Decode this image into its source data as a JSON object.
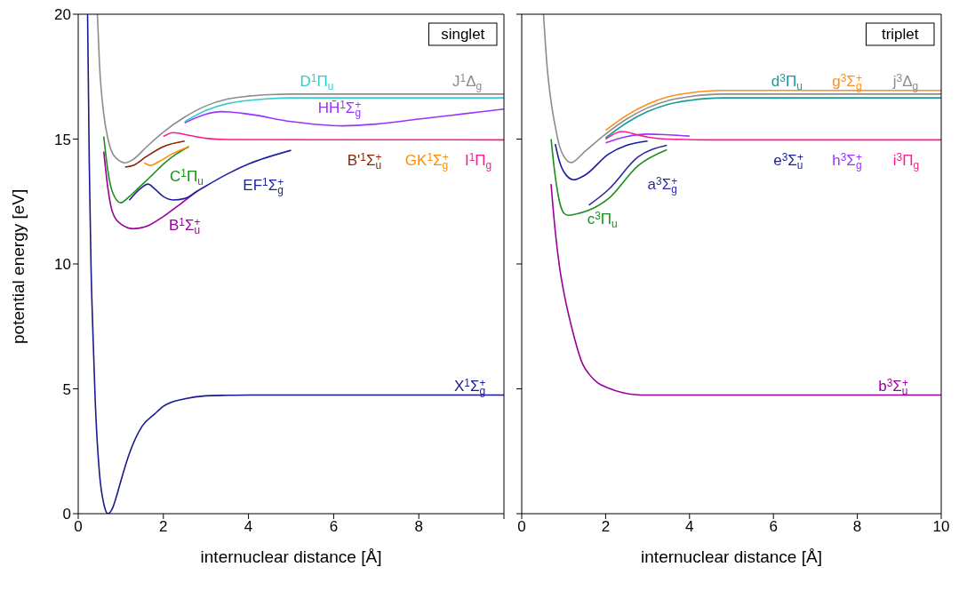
{
  "chart_data": [
    {
      "type": "line",
      "xlabel": "internuclear distance [Å]",
      "ylabel": "potential energy [eV]",
      "xlim": [
        0,
        10
      ],
      "ylim": [
        0,
        20
      ],
      "xticks": [
        0,
        2,
        4,
        6,
        8,
        {
          "value": 10,
          "label": null
        }
      ],
      "yticks": [
        0,
        5,
        10,
        15,
        20
      ],
      "annotations": [
        "singlet"
      ],
      "series": [
        {
          "name": "X$^{1}$Σ$_{g}$$^{+}$",
          "color": "#1a1a8c",
          "x": [
            0.22,
            0.26,
            0.3,
            0.35,
            0.4,
            0.5,
            0.6,
            0.7,
            0.8,
            0.9,
            1.0,
            1.2,
            1.5,
            1.8,
            2.0,
            2.5,
            3.0,
            3.5,
            4.0,
            10
          ],
          "values": [
            20,
            14,
            10,
            7,
            4.5,
            1.6,
            0.4,
            0,
            0.2,
            0.7,
            1.3,
            2.4,
            3.5,
            4.0,
            4.3,
            4.6,
            4.72,
            4.74,
            4.75,
            4.75
          ]
        },
        {
          "name": "B$^{1}$Σ$_{u}$$^{+}$",
          "color": "#990099",
          "x": [
            0.6,
            0.7,
            0.8,
            1.0,
            1.3,
            1.6,
            2.0,
            2.4,
            2.8
          ],
          "values": [
            14.5,
            13,
            12.1,
            11.6,
            11.41,
            11.5,
            11.9,
            12.4,
            12.92
          ]
        },
        {
          "name": "EF$^{1}$Σ$_{g}$$^{+}$",
          "color": "#1f1fa0",
          "x": [
            1.2,
            1.45,
            1.64,
            1.8,
            2.0,
            2.23,
            2.5,
            2.8,
            3.5,
            4.0,
            5.0
          ],
          "values": [
            12.55,
            13.0,
            13.2,
            13.0,
            12.7,
            12.56,
            12.62,
            12.92,
            13.6,
            14.0,
            14.55
          ]
        },
        {
          "name": "C$^{1}$Π$_{u}$",
          "color": "#1a8f1a",
          "x": [
            0.6,
            0.7,
            0.8,
            1.0,
            1.2,
            1.45,
            1.64,
            1.88,
            2.0,
            2.3,
            2.6
          ],
          "values": [
            15.1,
            13.7,
            12.9,
            12.45,
            12.7,
            13.1,
            13.4,
            13.8,
            14.0,
            14.4,
            14.7
          ]
        },
        {
          "name": "B'$^{1}$Σ$_{u}$$^{+}$",
          "color": "#8b2500",
          "x": [
            1.1,
            1.3,
            1.6,
            2.0,
            2.5
          ],
          "values": [
            13.88,
            13.95,
            14.3,
            14.7,
            14.92
          ]
        },
        {
          "name": "GK$^{1}$Σ$_{g}$$^{+}$",
          "color": "#ff8c00",
          "x": [
            1.55,
            1.7,
            1.9,
            2.2,
            2.6
          ],
          "values": [
            14.05,
            13.95,
            14.1,
            14.4,
            14.7
          ]
        },
        {
          "name": "I$^{1}$Π$_{g}$",
          "color": "#ff1a8c",
          "x": [
            2.0,
            2.23,
            2.6,
            3.0,
            3.5,
            10
          ],
          "values": [
            15.1,
            15.26,
            15.15,
            15.03,
            14.98,
            14.97
          ]
        },
        {
          "name": "HH̄$^{1}$Σ$_{g}$$^{+}$",
          "color": "#9933ff",
          "x": [
            2.5,
            3.0,
            3.35,
            4.0,
            5.0,
            6.2,
            7.0,
            8.0,
            9.0,
            10
          ],
          "values": [
            15.65,
            16.0,
            16.1,
            16.0,
            15.7,
            15.53,
            15.6,
            15.8,
            16.0,
            16.2
          ]
        },
        {
          "name": "D$^{1}$Π$_{u}$",
          "color": "#33cccc",
          "x": [
            2.5,
            3.0,
            3.5,
            4.0,
            4.5,
            5.0,
            10
          ],
          "values": [
            15.7,
            16.15,
            16.42,
            16.55,
            16.62,
            16.65,
            16.65
          ]
        },
        {
          "name": "J$^{1}$Δ$_{g}$",
          "color": "#8c8c8c",
          "x": [
            0.45,
            0.5,
            0.6,
            0.7,
            0.8,
            1.0,
            1.1,
            1.3,
            1.6,
            2.0,
            2.5,
            3.0,
            3.5,
            4.0,
            4.5,
            5.0,
            10
          ],
          "values": [
            20,
            18,
            16,
            15,
            14.45,
            14.1,
            14.05,
            14.2,
            14.68,
            15.28,
            15.88,
            16.33,
            16.6,
            16.72,
            16.78,
            16.8,
            16.8
          ]
        }
      ]
    },
    {
      "type": "line",
      "xlabel": "internuclear distance [Å]",
      "xlim": [
        0,
        10
      ],
      "ylim": [
        0,
        20
      ],
      "xticks": [
        0,
        2,
        4,
        6,
        8,
        10
      ],
      "yticks": [
        0,
        5,
        10,
        15,
        20
      ],
      "tick_labels": "x",
      "annotations": [
        "triplet"
      ],
      "series": [
        {
          "name": "b$^{3}$Σ$_{u}$$^{+}$",
          "color": "#990099",
          "x": [
            0.7,
            0.8,
            0.9,
            1.0,
            1.2,
            1.45,
            1.6,
            1.8,
            2.07,
            2.4,
            2.7,
            3.0,
            10
          ],
          "values": [
            13.2,
            11.3,
            9.9,
            8.9,
            7.4,
            6.0,
            5.6,
            5.25,
            5.03,
            4.85,
            4.77,
            4.75,
            4.75
          ]
        },
        {
          "name": "c$^{3}$Π$_{u}$",
          "color": "#1a8f1a",
          "x": [
            0.7,
            0.8,
            0.9,
            1.0,
            1.1,
            1.3,
            1.6,
            2.07,
            2.77,
            3.46
          ],
          "values": [
            15,
            13.5,
            12.5,
            12.05,
            11.95,
            12.0,
            12.15,
            12.62,
            13.93,
            14.57
          ]
        },
        {
          "name": "a$^{3}$Σ$_{g}$$^{+}$",
          "color": "#2a2a99",
          "x": [
            1.6,
            2.07,
            2.77,
            3.46
          ],
          "values": [
            12.35,
            12.98,
            14.28,
            14.75
          ]
        },
        {
          "name": "e$^{3}$Σ$_{u}$$^{+}$",
          "color": "#1a1aa0",
          "x": [
            0.8,
            0.9,
            1.0,
            1.24,
            1.5,
            2.07,
            2.5,
            3.0
          ],
          "values": [
            14.8,
            14.1,
            13.7,
            13.37,
            13.55,
            14.4,
            14.75,
            14.92
          ]
        },
        {
          "name": "h$^{3}$Σ$_{g}$$^{+}$",
          "color": "#9933ff",
          "x": [
            2.0,
            2.5,
            3.0,
            3.5,
            4.0
          ],
          "values": [
            14.85,
            15.1,
            15.2,
            15.17,
            15.12
          ]
        },
        {
          "name": "i$^{3}$Π$_{g}$",
          "color": "#ff1a8c",
          "x": [
            2.0,
            2.39,
            2.8,
            3.0,
            3.5,
            4.5,
            10
          ],
          "values": [
            15.0,
            15.3,
            15.15,
            15.08,
            15.0,
            14.97,
            14.97
          ]
        },
        {
          "name": "d$^{3}$Π$_{u}$",
          "color": "#1a9999",
          "x": [
            2.0,
            2.5,
            3.0,
            3.5,
            4.0,
            4.8,
            10
          ],
          "values": [
            15.05,
            15.65,
            16.1,
            16.4,
            16.55,
            16.65,
            16.65
          ]
        },
        {
          "name": "g$^{3}$Σ$_{g}$$^{+}$",
          "color": "#ff8c1a",
          "x": [
            2.0,
            2.5,
            3.0,
            3.5,
            4.0,
            4.8,
            10
          ],
          "values": [
            15.35,
            15.95,
            16.4,
            16.7,
            16.85,
            16.95,
            16.95
          ]
        },
        {
          "name": "j$^{3}$Δ$_{g}$",
          "color": "#8c8c8c",
          "x": [
            0.52,
            0.6,
            0.7,
            0.8,
            0.9,
            1.0,
            1.18,
            1.5,
            2.0,
            2.5,
            3.0,
            3.5,
            4.0,
            4.8,
            10
          ],
          "values": [
            20,
            18,
            16.5,
            15.5,
            14.72,
            14.32,
            14.06,
            14.5,
            15.2,
            15.8,
            16.25,
            16.55,
            16.7,
            16.8,
            16.8
          ]
        }
      ]
    }
  ]
}
